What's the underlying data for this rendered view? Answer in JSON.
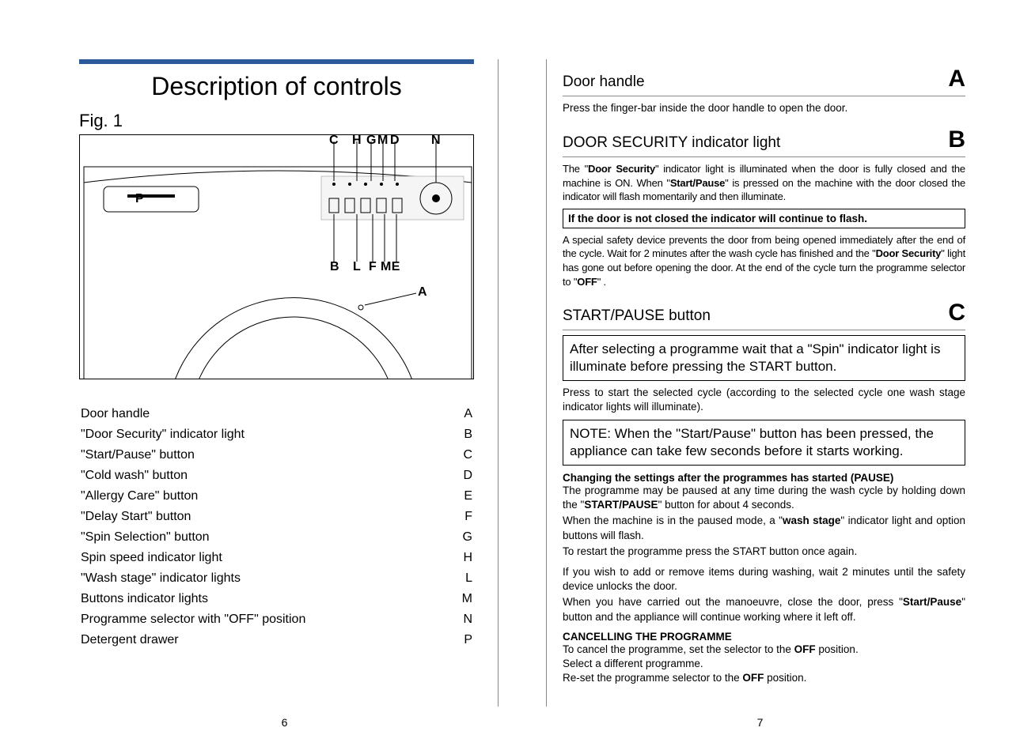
{
  "left": {
    "title": "Description of controls",
    "fig": "Fig. 1",
    "labels": {
      "C": "C",
      "H": "H",
      "G": "G",
      "M": "M",
      "D": "D",
      "N": "N",
      "P": "P",
      "B": "B",
      "L": "L",
      "F": "F",
      "ME": "M E",
      "A": "A"
    },
    "rows": [
      [
        "Door handle",
        "A"
      ],
      [
        "\"Door Security\" indicator light",
        "B"
      ],
      [
        "\"Start/Pause\" button",
        "C"
      ],
      [
        "\"Cold wash\" button",
        "D"
      ],
      [
        "\"Allergy Care\" button",
        "E"
      ],
      [
        "\"Delay Start\" button",
        "F"
      ],
      [
        "\"Spin Selection\" button",
        "G"
      ],
      [
        "Spin speed indicator light",
        "H"
      ],
      [
        "\"Wash stage\" indicator lights",
        "L"
      ],
      [
        "Buttons indicator lights",
        "M"
      ],
      [
        "Programme selector with \"OFF\" position",
        "N"
      ],
      [
        "Detergent drawer",
        "P"
      ]
    ],
    "pagenum": "6"
  },
  "right": {
    "A": {
      "title": "Door handle",
      "letter": "A",
      "text": "Press the finger-bar inside the door handle to open the door."
    },
    "B": {
      "title": "DOOR SECURITY indicator light",
      "letter": "B",
      "p1_pre": "The \"",
      "p1_b1": "Door Security",
      "p1_mid": "\" indicator light is illuminated when the door is fully closed and the machine is ON. When \"",
      "p1_b2": "Start/Pause",
      "p1_post": "\" is pressed on the machine with the door closed the indicator will flash momentarily and then illuminate.",
      "warn": "If the door is not closed the indicator will continue to flash.",
      "p2_pre": "A special safety device prevents the door from being opened immediately after the end of the cycle. Wait for 2 minutes after the wash cycle has finished and the \"",
      "p2_b1": "Door Security",
      "p2_mid": "\" light has gone out before opening the door. At the end of the cycle turn the programme selector to \"",
      "p2_b2": "OFF",
      "p2_post": "\" ."
    },
    "C": {
      "title": "START/PAUSE button",
      "letter": "C",
      "box1": "After selecting a programme wait that a  \"Spin\" indicator light is illuminate before pressing the START button.",
      "p1": "Press to start the selected cycle (according to the selected cycle one wash stage indicator lights will illuminate).",
      "box2": "NOTE: When the \"Start/Pause\" button has been pressed, the appliance can take few seconds before it starts working.",
      "sub1": "Changing the settings after the programmes has started (PAUSE)",
      "p2_pre": "The programme may be paused at any time during the wash cycle by holding down the \"",
      "p2_b1": "START/PAUSE",
      "p2_mid": "\" button for about 4 seconds.",
      "p3_pre": "When the machine is in the paused mode, a \"",
      "p3_b1": "wash stage",
      "p3_post": "\" indicator light and option buttons will flash.",
      "p4": "To restart the programme press the START button once again.",
      "p5": "If you wish to add or remove items during washing, wait 2 minutes until the safety device unlocks the door.",
      "p6_pre": "When you have carried out the manoeuvre, close the door, press \"",
      "p6_b1": "Start/Pause",
      "p6_post": "\" button and the appliance will continue working where it left off.",
      "sub2": "CANCELLING THE PROGRAMME",
      "p7_pre": "To cancel the programme, set the selector to the ",
      "p7_b1": "OFF",
      "p7_post": " position.",
      "p8": "Select a different programme.",
      "p9_pre": "Re-set the programme selector to the ",
      "p9_b1": "OFF",
      "p9_post": " position."
    },
    "pagenum": "7"
  },
  "colors": {
    "bar": "#2a5a9a"
  }
}
